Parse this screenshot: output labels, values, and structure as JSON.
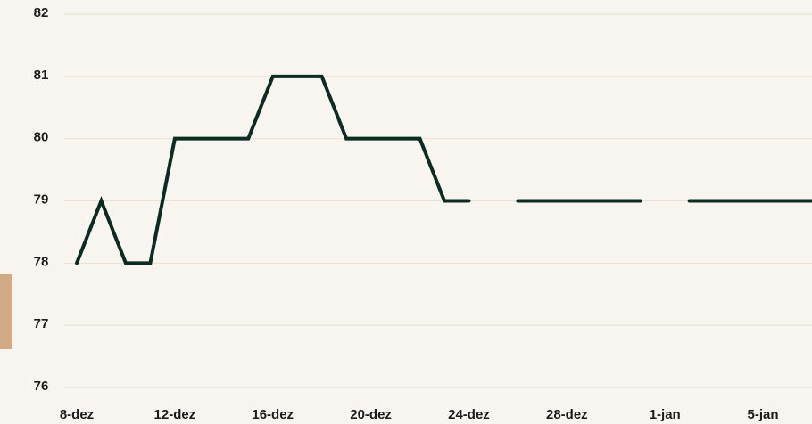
{
  "chart_data": {
    "type": "line",
    "categories": [
      "8-dez",
      null,
      null,
      null,
      "12-dez",
      null,
      null,
      null,
      "16-dez",
      null,
      null,
      null,
      "20-dez",
      null,
      null,
      null,
      "24-dez",
      null,
      null,
      null,
      "28-dez",
      null,
      null,
      null,
      "1-jan",
      null,
      null,
      null,
      "5-jan",
      null,
      null
    ],
    "series": [
      {
        "color": "#0d2b22",
        "values": [
          78,
          79,
          78,
          78,
          80,
          80,
          80,
          80,
          81,
          81,
          81,
          80,
          80,
          80,
          80,
          79,
          79,
          null,
          79,
          79,
          79,
          79,
          79,
          79,
          null,
          79,
          79,
          79,
          79,
          79,
          79
        ]
      }
    ],
    "ylim": [
      76,
      82
    ],
    "yticks": [
      76,
      77,
      78,
      79,
      80,
      81,
      82
    ],
    "grid": true
  }
}
